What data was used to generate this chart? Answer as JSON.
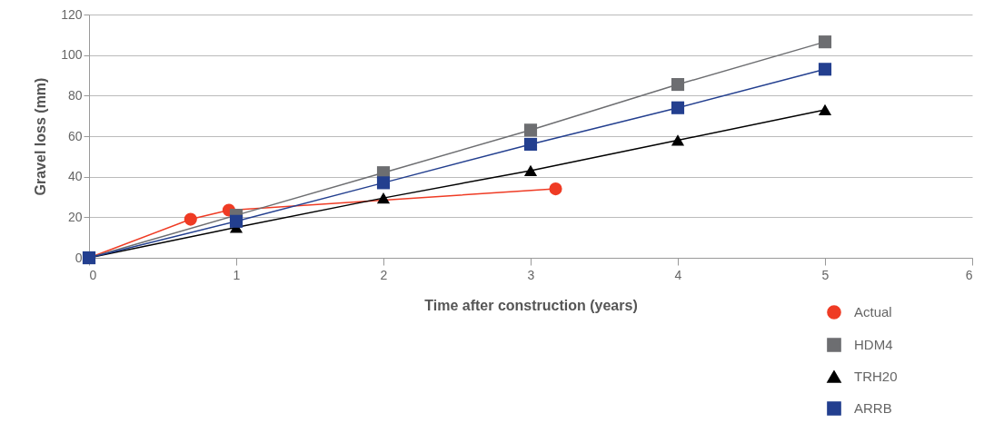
{
  "chart_data": {
    "type": "line",
    "xlabel": "Time after construction (years)",
    "ylabel": "Gravel loss (mm)",
    "x": [
      0,
      1,
      2,
      3,
      4,
      5
    ],
    "series": [
      {
        "name": "Actual",
        "color": "#ef3b24",
        "marker": "circle",
        "x": [
          0,
          0.69,
          0.95,
          3.17
        ],
        "values": [
          0,
          19,
          23.5,
          34
        ]
      },
      {
        "name": "HDM4",
        "color": "#6d6e71",
        "marker": "square",
        "values": [
          0,
          21,
          42,
          63,
          85.5,
          106.5
        ]
      },
      {
        "name": "TRH20",
        "color": "#000000",
        "marker": "triangle",
        "values": [
          0,
          15,
          29.5,
          43,
          58,
          73
        ]
      },
      {
        "name": "ARRB",
        "color": "#233f8f",
        "marker": "square",
        "values": [
          0,
          18,
          37,
          56,
          74,
          93
        ]
      }
    ],
    "xlim": [
      0,
      6
    ],
    "xticks": [
      0,
      1,
      2,
      3,
      4,
      5,
      6
    ],
    "ylim": [
      0,
      120
    ],
    "yticks": [
      0,
      20,
      40,
      60,
      80,
      100,
      120
    ],
    "grid": "y",
    "legend": "bottom right"
  }
}
